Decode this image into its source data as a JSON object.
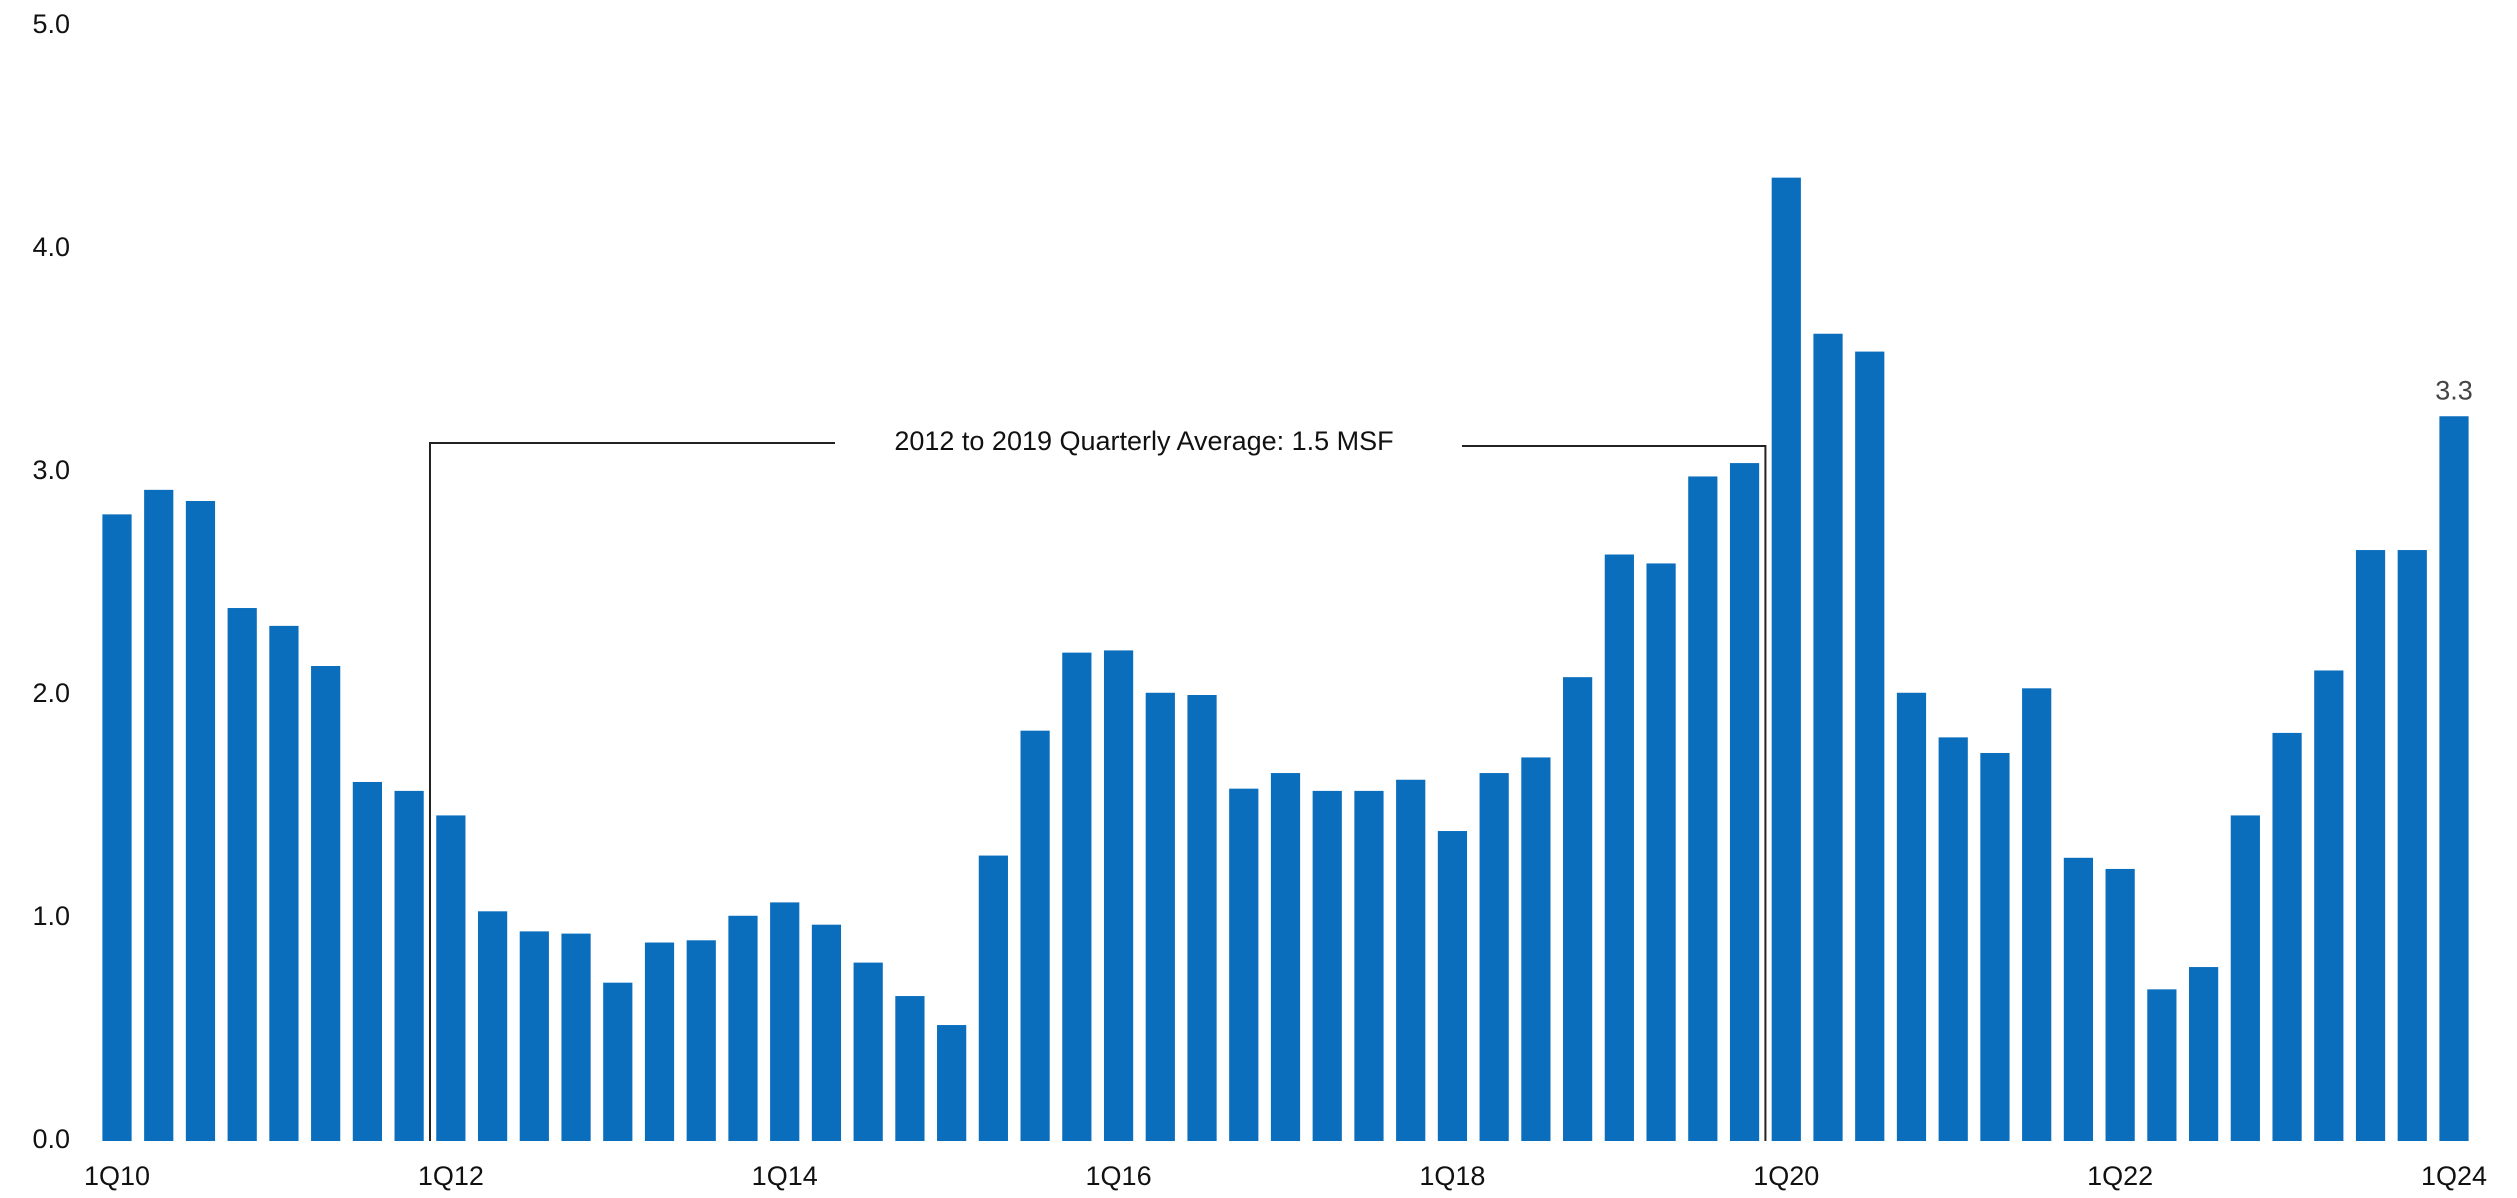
{
  "chart_data": {
    "type": "bar",
    "categories": [
      "1Q10",
      null,
      null,
      null,
      null,
      null,
      null,
      null,
      "1Q12",
      null,
      null,
      null,
      null,
      null,
      null,
      null,
      "1Q14",
      null,
      null,
      null,
      null,
      null,
      null,
      null,
      "1Q16",
      null,
      null,
      null,
      null,
      null,
      null,
      null,
      "1Q18",
      null,
      null,
      null,
      null,
      null,
      null,
      null,
      "1Q20",
      null,
      null,
      null,
      null,
      null,
      null,
      null,
      "1Q22",
      null,
      null,
      null,
      null,
      null,
      null,
      null,
      "1Q24"
    ],
    "values": [
      2.81,
      2.92,
      2.87,
      2.39,
      2.31,
      2.13,
      1.61,
      1.57,
      1.46,
      1.03,
      0.94,
      0.93,
      0.71,
      0.89,
      0.9,
      1.01,
      1.07,
      0.97,
      0.8,
      0.65,
      0.52,
      1.28,
      1.84,
      2.19,
      2.2,
      2.01,
      2.0,
      1.58,
      1.65,
      1.57,
      1.57,
      1.62,
      1.39,
      1.65,
      1.72,
      2.08,
      2.63,
      2.59,
      2.98,
      3.04,
      4.32,
      3.62,
      3.54,
      2.01,
      1.81,
      1.74,
      2.03,
      1.27,
      1.22,
      0.68,
      0.78,
      1.46,
      1.83,
      2.11,
      2.65,
      2.65,
      3.25
    ],
    "value_labels": [
      null,
      null,
      null,
      null,
      null,
      null,
      null,
      null,
      null,
      null,
      null,
      null,
      null,
      null,
      null,
      null,
      null,
      null,
      null,
      null,
      null,
      null,
      null,
      null,
      null,
      null,
      null,
      null,
      null,
      null,
      null,
      null,
      null,
      null,
      null,
      null,
      null,
      null,
      null,
      null,
      null,
      null,
      null,
      null,
      null,
      null,
      null,
      null,
      null,
      null,
      null,
      null,
      null,
      null,
      null,
      null,
      "3.3"
    ],
    "color": "#0a6ebd",
    "ylim": [
      0,
      5
    ],
    "yticks": [
      {
        "value": 0,
        "label": "0.0"
      },
      {
        "value": 1,
        "label": "1.0"
      },
      {
        "value": 2,
        "label": "2.0"
      },
      {
        "value": 3,
        "label": "3.0"
      },
      {
        "value": 4,
        "label": "4.0"
      },
      {
        "value": 5,
        "label": "5.0"
      }
    ],
    "grid": false,
    "annotation": "2012 to 2019 Quarterly Average: 1.5 MSF"
  }
}
